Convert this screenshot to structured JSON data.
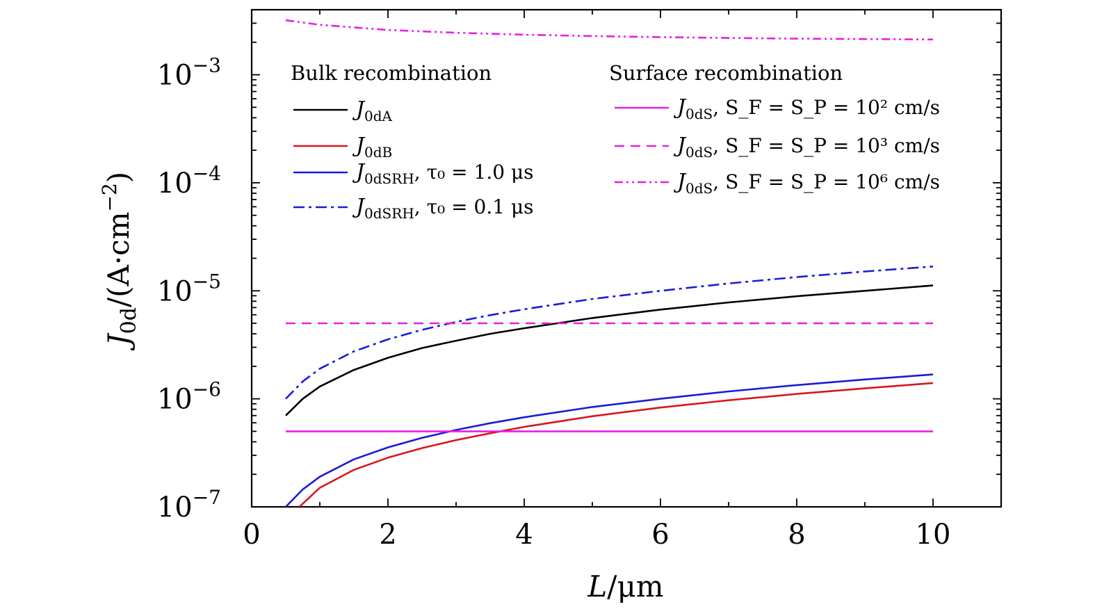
{
  "chart_data": {
    "type": "line",
    "xlabel": "L/μm",
    "ylabel": "J0d/(A·cm−2)",
    "yscale": "log",
    "xlim": [
      0,
      11
    ],
    "ylim": [
      1e-07,
      0.004
    ],
    "x_ticks": [
      "0",
      "2",
      "4",
      "6",
      "8",
      "10"
    ],
    "y_ticks": [
      {
        "base": "10",
        "exp": "−3"
      },
      {
        "base": "10",
        "exp": "−4"
      },
      {
        "base": "10",
        "exp": "−5"
      },
      {
        "base": "10",
        "exp": "−6"
      },
      {
        "base": "10",
        "exp": "−7"
      }
    ],
    "legend_groups": [
      {
        "title": "Bulk recombination"
      },
      {
        "title": "Surface recombination"
      }
    ],
    "series": [
      {
        "id": "j0dA",
        "name": "J0dA",
        "label_main": "J",
        "label_sub": "0dA",
        "label_rest": "",
        "color": "#000000",
        "dash": "solid",
        "group": 0,
        "x": [
          0.5,
          0.75,
          1,
          1.5,
          2,
          2.5,
          3,
          3.5,
          4,
          5,
          6,
          7,
          8,
          9,
          10
        ],
        "y": [
          7e-07,
          1e-06,
          1.3e-06,
          1.85e-06,
          2.4e-06,
          2.95e-06,
          3.45e-06,
          4e-06,
          4.5e-06,
          5.6e-06,
          6.7e-06,
          7.8e-06,
          8.9e-06,
          1e-05,
          1.12e-05
        ]
      },
      {
        "id": "j0dB",
        "name": "J0dB",
        "label_main": "J",
        "label_sub": "0dB",
        "label_rest": "",
        "color": "#d9161c",
        "dash": "solid",
        "group": 0,
        "x": [
          0.7,
          1,
          1.5,
          2,
          2.5,
          3,
          3.5,
          4,
          5,
          6,
          7,
          8,
          9,
          10
        ],
        "y": [
          1e-07,
          1.5e-07,
          2.2e-07,
          2.85e-07,
          3.5e-07,
          4.15e-07,
          4.8e-07,
          5.5e-07,
          6.9e-07,
          8.3e-07,
          9.7e-07,
          1.11e-06,
          1.25e-06,
          1.4e-06
        ]
      },
      {
        "id": "j0dSRH1",
        "name": "J0dSRH, τ0 = 1.0 μs",
        "label_main": "J",
        "label_sub": "0dSRH",
        "label_rest": ", τ₀ = 1.0 μs",
        "color": "#1b1bd6",
        "dash": "solid",
        "group": 0,
        "x": [
          0.5,
          0.75,
          1,
          1.5,
          2,
          2.5,
          3,
          3.5,
          4,
          5,
          6,
          7,
          8,
          9,
          10
        ],
        "y": [
          1e-07,
          1.45e-07,
          1.9e-07,
          2.75e-07,
          3.55e-07,
          4.35e-07,
          5.15e-07,
          5.95e-07,
          6.75e-07,
          8.4e-07,
          1e-06,
          1.17e-06,
          1.34e-06,
          1.51e-06,
          1.68e-06
        ]
      },
      {
        "id": "j0dSRH01",
        "name": "J0dSRH, τ0 = 0.1 μs",
        "label_main": "J",
        "label_sub": "0dSRH",
        "label_rest": ", τ₀ = 0.1 μs",
        "color": "#1b1bd6",
        "dash": "dashdot",
        "group": 0,
        "x": [
          0.5,
          0.75,
          1,
          1.5,
          2,
          2.5,
          3,
          3.5,
          4,
          5,
          6,
          7,
          8,
          9,
          10
        ],
        "y": [
          1e-06,
          1.45e-06,
          1.9e-06,
          2.75e-06,
          3.55e-06,
          4.35e-06,
          5.15e-06,
          5.95e-06,
          6.75e-06,
          8.4e-06,
          1e-05,
          1.17e-05,
          1.34e-05,
          1.51e-05,
          1.68e-05
        ]
      },
      {
        "id": "j0dS2",
        "name": "J0dS, SF = SP = 10^2 cm/s",
        "label_main": "J",
        "label_sub": "0dS",
        "label_rest": ", S_F = S_P = 10² cm/s",
        "color": "#e61ee6",
        "dash": "solid",
        "group": 1,
        "x": [
          0.5,
          10
        ],
        "y": [
          5e-07,
          5e-07
        ]
      },
      {
        "id": "j0dS3",
        "name": "J0dS, SF = SP = 10^3 cm/s",
        "label_main": "J",
        "label_sub": "0dS",
        "label_rest": ", S_F = S_P = 10³ cm/s",
        "color": "#e61ee6",
        "dash": "dashed",
        "group": 1,
        "x": [
          0.5,
          10
        ],
        "y": [
          5e-06,
          5e-06
        ]
      },
      {
        "id": "j0dS6",
        "name": "J0dS, SF = SP = 10^6 cm/s",
        "label_main": "J",
        "label_sub": "0dS",
        "label_rest": ", S_F = S_P = 10⁶ cm/s",
        "color": "#e61ee6",
        "dash": "dashdotdot",
        "group": 1,
        "x": [
          0.5,
          1,
          2,
          3,
          4,
          5,
          6,
          7,
          8,
          9,
          10
        ],
        "y": [
          0.0032,
          0.0029,
          0.0026,
          0.00245,
          0.00235,
          0.00228,
          0.00223,
          0.00219,
          0.00216,
          0.00214,
          0.00212
        ]
      }
    ]
  }
}
